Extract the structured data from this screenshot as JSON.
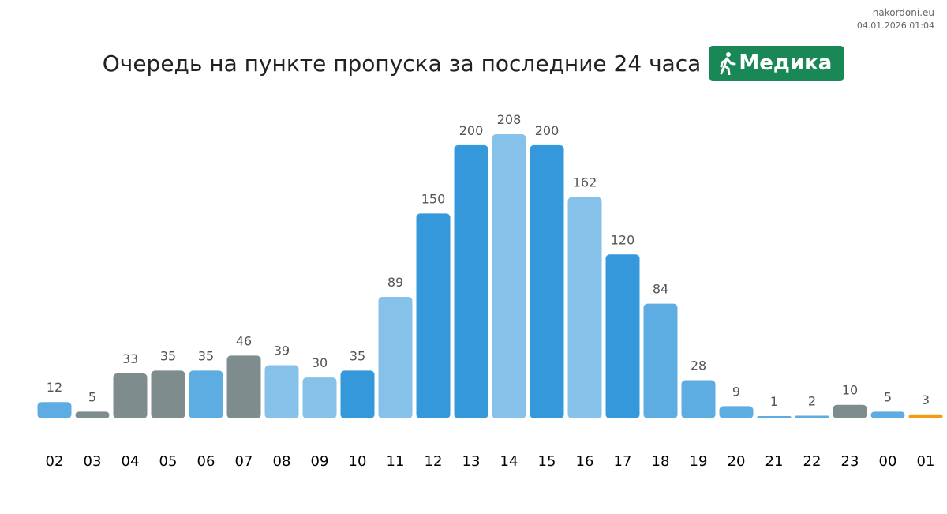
{
  "site": {
    "name": "nakordoni.eu",
    "date": "04.01.2026 01:04"
  },
  "header": {
    "title": "Очередь на пункте пропуска за последние 24 часа",
    "badge_label": "Медика",
    "badge_icon": "walking-person-icon",
    "badge_color": "#1a8856"
  },
  "chart_data": {
    "type": "bar",
    "categories": [
      "02",
      "03",
      "04",
      "05",
      "06",
      "07",
      "08",
      "09",
      "10",
      "11",
      "12",
      "13",
      "14",
      "15",
      "16",
      "17",
      "18",
      "19",
      "20",
      "21",
      "22",
      "23",
      "00",
      "01"
    ],
    "values": [
      12,
      5,
      33,
      35,
      35,
      46,
      39,
      30,
      35,
      89,
      150,
      200,
      208,
      200,
      162,
      120,
      84,
      28,
      9,
      1,
      2,
      10,
      5,
      3
    ],
    "colors": [
      "#5dade2",
      "#7f8c8d",
      "#7f8c8d",
      "#7f8c8d",
      "#5dade2",
      "#7f8c8d",
      "#85c1e9",
      "#85c1e9",
      "#3498db",
      "#85c1e9",
      "#3498db",
      "#3498db",
      "#85c1e9",
      "#3498db",
      "#85c1e9",
      "#3498db",
      "#5dade2",
      "#5dade2",
      "#5dade2",
      "#5dade2",
      "#5dade2",
      "#7f8c8d",
      "#5dade2",
      "#f39c12"
    ],
    "title": "Очередь на пункте пропуска за последние 24 часа",
    "xlabel": "",
    "ylabel": "",
    "ylim": [
      0,
      208
    ],
    "grid": false,
    "legend": "none"
  }
}
